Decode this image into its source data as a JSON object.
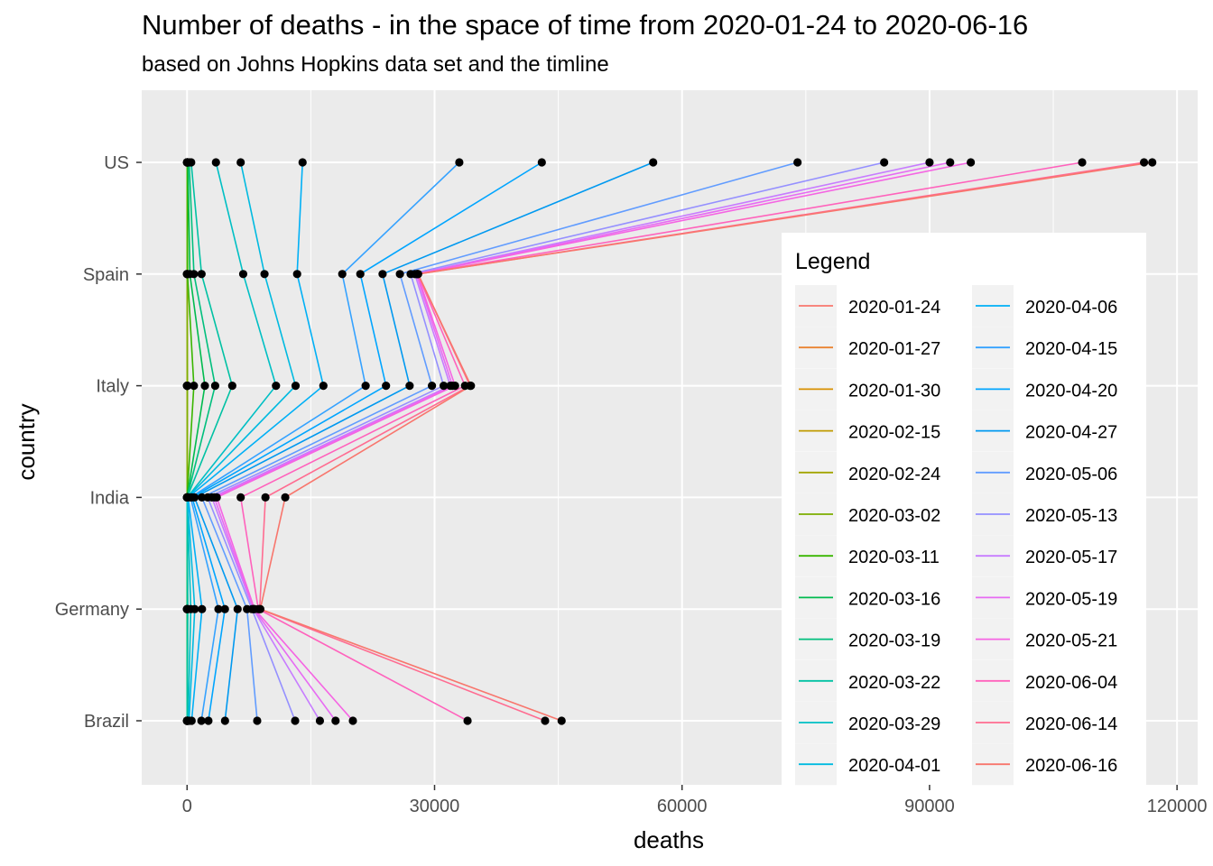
{
  "chart_data": {
    "type": "line",
    "title": "Number of deaths - in the space of time from 2020-01-24 to 2020-06-16",
    "subtitle": "based on Johns Hopkins data set and the timline",
    "xlabel": "deaths",
    "ylabel": "country",
    "xlim": [
      -5500,
      122500
    ],
    "x_ticks": [
      "0",
      "30000",
      "60000",
      "90000",
      "120000"
    ],
    "x_tick_values": [
      0,
      30000,
      60000,
      90000,
      120000
    ],
    "categories": [
      "US",
      "Spain",
      "Italy",
      "India",
      "Germany",
      "Brazil"
    ],
    "grid": true,
    "legend": {
      "title": "Legend",
      "placement": "right-inside",
      "columns": 2
    },
    "series": [
      {
        "name": "2020-01-24",
        "color": "#F8766D",
        "values": [
          0,
          0,
          0,
          0,
          0,
          0
        ]
      },
      {
        "name": "2020-01-27",
        "color": "#EA8331",
        "values": [
          0,
          0,
          0,
          0,
          0,
          0
        ]
      },
      {
        "name": "2020-01-30",
        "color": "#D89000",
        "values": [
          0,
          0,
          0,
          0,
          0,
          0
        ]
      },
      {
        "name": "2020-02-15",
        "color": "#C09B00",
        "values": [
          0,
          0,
          0,
          0,
          0,
          0
        ]
      },
      {
        "name": "2020-02-24",
        "color": "#A3A500",
        "values": [
          0,
          0,
          7,
          0,
          0,
          0
        ]
      },
      {
        "name": "2020-03-02",
        "color": "#7CAE00",
        "values": [
          6,
          1,
          52,
          0,
          0,
          0
        ]
      },
      {
        "name": "2020-03-11",
        "color": "#39B600",
        "values": [
          32,
          55,
          827,
          1,
          3,
          0
        ]
      },
      {
        "name": "2020-03-16",
        "color": "#00BB4E",
        "values": [
          100,
          342,
          2158,
          2,
          17,
          0
        ]
      },
      {
        "name": "2020-03-19",
        "color": "#00BF7D",
        "values": [
          250,
          830,
          3405,
          4,
          44,
          3
        ]
      },
      {
        "name": "2020-03-22",
        "color": "#00C1A3",
        "values": [
          500,
          1756,
          5476,
          7,
          94,
          25
        ]
      },
      {
        "name": "2020-03-29",
        "color": "#00BFC4",
        "values": [
          3500,
          6803,
          10779,
          27,
          455,
          136
        ]
      },
      {
        "name": "2020-04-01",
        "color": "#00BAE0",
        "values": [
          6500,
          9387,
          13155,
          50,
          931,
          240
        ]
      },
      {
        "name": "2020-04-06",
        "color": "#00B0F6",
        "values": [
          14000,
          13341,
          16523,
          120,
          1810,
          553
        ]
      },
      {
        "name": "2020-04-15",
        "color": "#35A2FF",
        "values": [
          33000,
          18812,
          21645,
          420,
          3804,
          1736
        ]
      },
      {
        "name": "2020-04-20",
        "color": "#00A5FF",
        "values": [
          43000,
          21000,
          24114,
          600,
          4586,
          2587
        ]
      },
      {
        "name": "2020-04-27",
        "color": "#0099F0",
        "values": [
          56500,
          23700,
          26977,
          900,
          6126,
          4600
        ]
      },
      {
        "name": "2020-05-06",
        "color": "#619CFF",
        "values": [
          74000,
          25800,
          29684,
          1800,
          7266,
          8500
        ]
      },
      {
        "name": "2020-05-13",
        "color": "#9590FF",
        "values": [
          84500,
          27100,
          31106,
          2500,
          7861,
          13100
        ]
      },
      {
        "name": "2020-05-17",
        "color": "#C77CFF",
        "values": [
          90000,
          27600,
          31908,
          3000,
          8027,
          16100
        ]
      },
      {
        "name": "2020-05-19",
        "color": "#E76BF3",
        "values": [
          92500,
          27800,
          32169,
          3300,
          8090,
          18000
        ]
      },
      {
        "name": "2020-05-21",
        "color": "#F564E3",
        "values": [
          95000,
          27900,
          32486,
          3600,
          8174,
          20100
        ]
      },
      {
        "name": "2020-06-04",
        "color": "#FF62BC",
        "values": [
          108500,
          27950,
          33689,
          6500,
          8635,
          34000
        ]
      },
      {
        "name": "2020-06-14",
        "color": "#FF6C91",
        "values": [
          116000,
          28000,
          34301,
          9500,
          8800,
          43400
        ]
      },
      {
        "name": "2020-06-16",
        "color": "#F8766D",
        "values": [
          117000,
          28000,
          34405,
          11900,
          8880,
          45400
        ]
      }
    ]
  }
}
